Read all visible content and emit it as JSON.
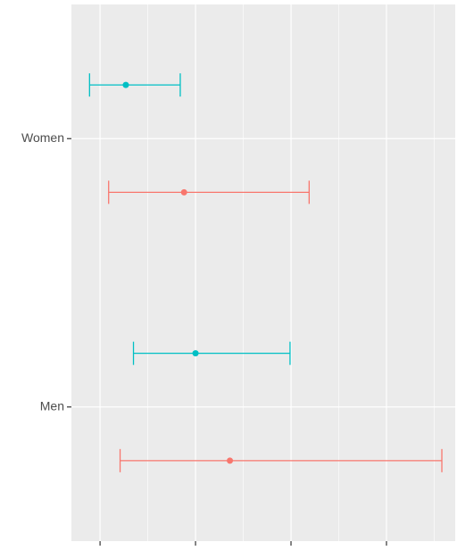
{
  "chart_data": {
    "type": "errorbar",
    "orientation": "horizontal",
    "categories": [
      "Men",
      "Women"
    ],
    "series": [
      {
        "color": "#f8766d",
        "values": [
          2.36,
          1.88
        ],
        "lower": [
          1.21,
          1.09
        ],
        "upper": [
          4.58,
          3.19
        ]
      },
      {
        "color": "#00bfc4",
        "values": [
          2.0,
          1.27
        ],
        "lower": [
          1.35,
          0.89
        ],
        "upper": [
          2.99,
          1.84
        ]
      }
    ],
    "xlim": [
      0.7,
      4.72
    ],
    "xticks": [
      1,
      2,
      3,
      4
    ],
    "grid": true
  }
}
